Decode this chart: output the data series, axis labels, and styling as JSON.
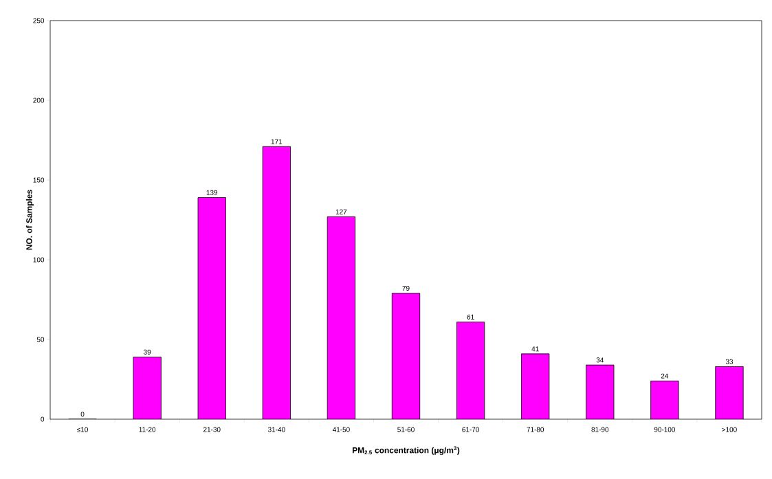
{
  "chart_data": {
    "type": "bar",
    "xlabel": "PM$_{2.5}$  concentration (μg/m$^{3}$)",
    "ylabel": "NO. of Samples",
    "categories": [
      "≤10",
      "11-20",
      "21-30",
      "31-40",
      "41-50",
      "51-60",
      "61-70",
      "71-80",
      "81-90",
      "90-100",
      ">100"
    ],
    "values": [
      0,
      39,
      139,
      171,
      127,
      79,
      61,
      41,
      34,
      24,
      33
    ],
    "color": "#ff00ff",
    "ylim": [
      0,
      250
    ],
    "yticks": [
      0,
      50,
      100,
      150,
      200,
      250
    ],
    "data_labels": true
  }
}
